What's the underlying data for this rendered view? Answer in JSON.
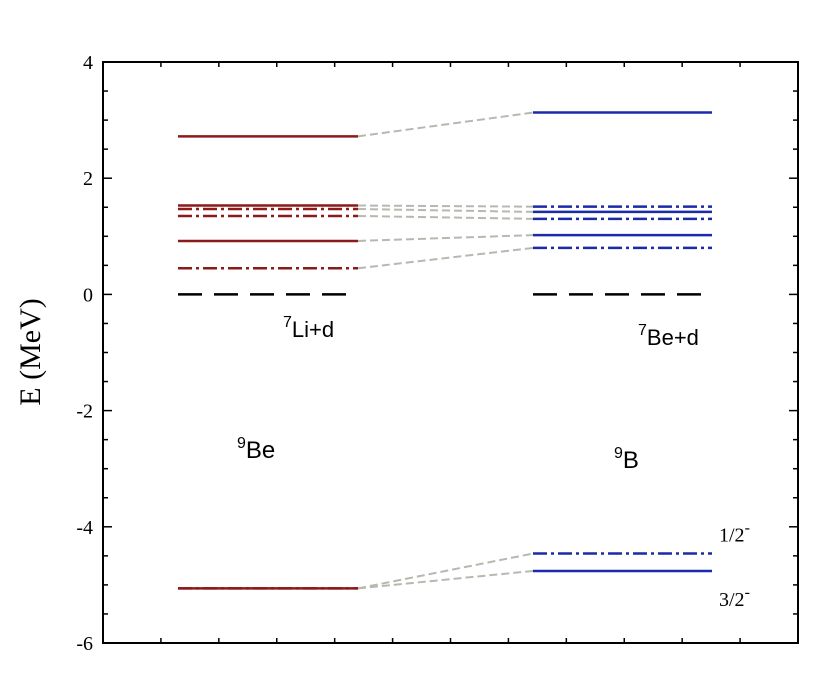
{
  "chart_data": {
    "type": "level-diagram",
    "ylabel": "E (MeV)",
    "ylim": [
      -6,
      4
    ],
    "yticks": [
      4,
      2,
      0,
      -2,
      -4,
      -6
    ],
    "ytick_labels": [
      "4",
      "2",
      "0",
      "-2",
      "-4",
      "-6"
    ],
    "colors": {
      "left": "#8b1a1a",
      "right": "#1a2aa8",
      "threshold": "#000000",
      "connector": "#b8b8b0"
    },
    "columns": [
      {
        "nucleus_mass": "9",
        "nucleus_symbol": "Be",
        "threshold_mass": "7",
        "threshold_text": "Li+d",
        "threshold_energy": 0,
        "levels": [
          {
            "energy": 2.72,
            "style": "solid"
          },
          {
            "energy": 1.53,
            "style": "solid"
          },
          {
            "energy": 1.47,
            "style": "dashdot"
          },
          {
            "energy": 1.35,
            "style": "dashdot"
          },
          {
            "energy": 0.92,
            "style": "solid"
          },
          {
            "energy": 0.45,
            "style": "dashdot"
          },
          {
            "energy": -5.06,
            "style": "solid"
          },
          {
            "energy": -5.06,
            "style": "dashdot"
          }
        ]
      },
      {
        "nucleus_mass": "9",
        "nucleus_symbol": "B",
        "threshold_mass": "7",
        "threshold_text": "Be+d",
        "threshold_energy": 0,
        "levels": [
          {
            "energy": 3.13,
            "style": "solid"
          },
          {
            "energy": 1.51,
            "style": "dashdot"
          },
          {
            "energy": 1.42,
            "style": "solid"
          },
          {
            "energy": 1.3,
            "style": "dashdot"
          },
          {
            "energy": 1.02,
            "style": "solid"
          },
          {
            "energy": 0.8,
            "style": "dashdot"
          },
          {
            "energy": -4.46,
            "style": "dashdot",
            "spin": "1/2",
            "parity": "-"
          },
          {
            "energy": -4.76,
            "style": "solid",
            "spin": "3/2",
            "parity": "-"
          }
        ]
      }
    ]
  }
}
